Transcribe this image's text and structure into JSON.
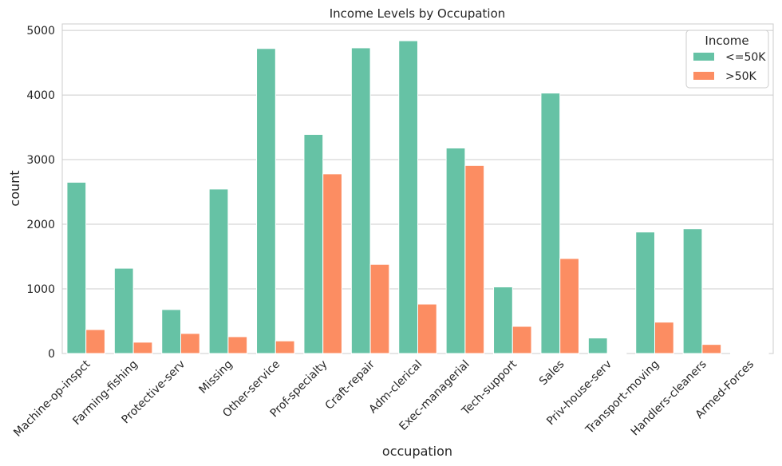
{
  "chart_data": {
    "type": "bar",
    "title": "Income Levels by Occupation",
    "xlabel": "occupation",
    "ylabel": "count",
    "ylim": [
      0,
      5100
    ],
    "yticks": [
      0,
      1000,
      2000,
      3000,
      4000,
      5000
    ],
    "grid": "horizontal",
    "legend_placement": "top-right",
    "legend_title": "Income",
    "categories": [
      "Machine-op-inspct",
      "Farming-fishing",
      "Protective-serv",
      "Missing",
      "Other-service",
      "Prof-specialty",
      "Craft-repair",
      "Adm-clerical",
      "Exec-managerial",
      "Tech-support",
      "Sales",
      "Priv-house-serv",
      "Transport-moving",
      "Handlers-cleaners",
      "Armed-Forces"
    ],
    "series": [
      {
        "name": "<=50K",
        "color": "#66c2a5",
        "values": [
          2650,
          1320,
          680,
          2545,
          4720,
          3390,
          4730,
          4840,
          3180,
          1030,
          4030,
          240,
          1880,
          1930,
          10
        ]
      },
      {
        "name": ">50K",
        "color": "#fc8d62",
        "values": [
          370,
          175,
          310,
          260,
          195,
          2780,
          1380,
          765,
          2910,
          420,
          1470,
          2,
          485,
          140,
          2
        ]
      }
    ]
  }
}
